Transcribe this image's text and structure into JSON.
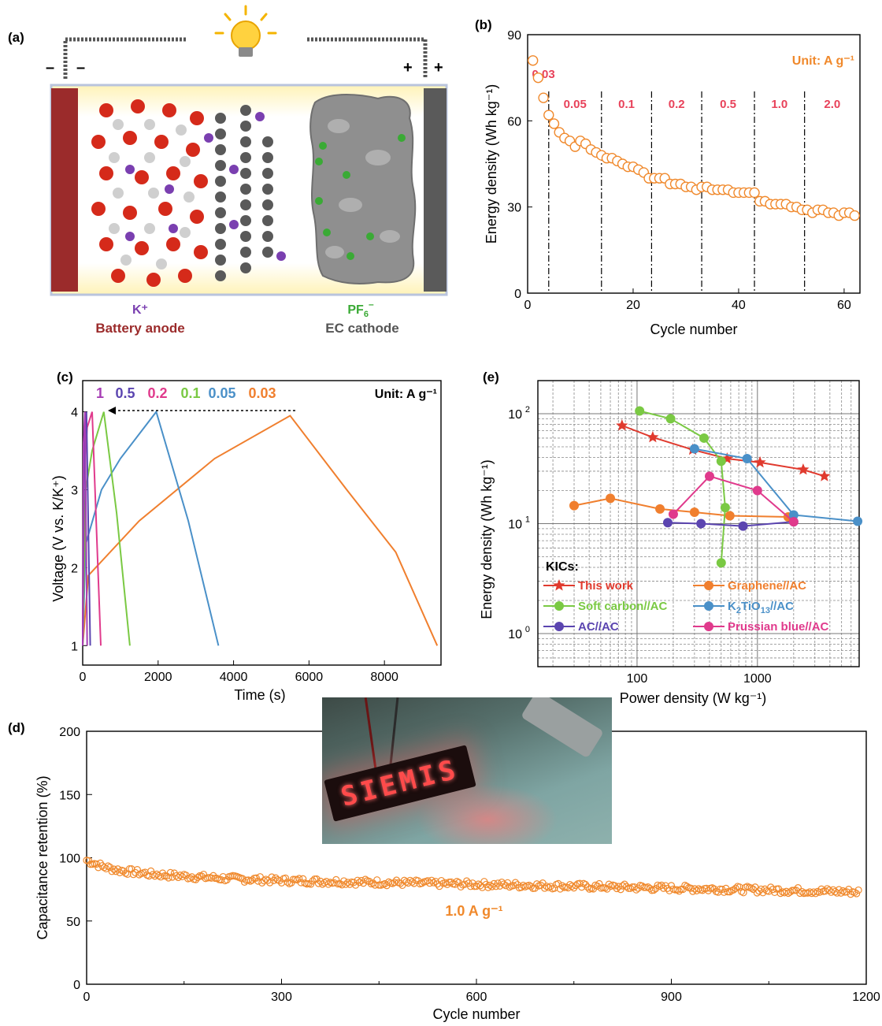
{
  "panel_labels": {
    "a": "(a)",
    "b": "(b)",
    "c": "(c)",
    "d": "(d)",
    "e": "(e)"
  },
  "schematic": {
    "minus": "–",
    "plus": "+",
    "k_ion": "K⁺",
    "anode_label": "Battery anode",
    "pf6_main": "PF",
    "pf6_sub": "6",
    "pf6_sup": "–",
    "cathode_label": "EC cathode",
    "colors": {
      "anode": "#9b2b2b",
      "cathode": "#555555",
      "k_ion": "#7a3fb0",
      "pf6": "#3aaa35"
    }
  },
  "chart_data": [
    {
      "id": "b",
      "type": "scatter",
      "xlabel": "Cycle number",
      "ylabel": "Energy density (Wh kg⁻¹)",
      "xlim": [
        0,
        63
      ],
      "ylim": [
        0,
        90
      ],
      "xticks": [
        0,
        20,
        40,
        60
      ],
      "yticks": [
        0,
        30,
        60,
        90
      ],
      "unit_note": "Unit: A g⁻¹",
      "rate_labels": [
        "0.03",
        "0.05",
        "0.1",
        "0.2",
        "0.5",
        "1.0",
        "2.0"
      ],
      "dividers": [
        4,
        14,
        23.5,
        33,
        43,
        52.5
      ],
      "marker_color": "#f0892c",
      "x": [
        1,
        2,
        3,
        4,
        5,
        6,
        7,
        8,
        9,
        10,
        11,
        12,
        13,
        14,
        15,
        16,
        17,
        18,
        19,
        20,
        21,
        22,
        23,
        24,
        25,
        26,
        27,
        28,
        29,
        30,
        31,
        32,
        33,
        34,
        35,
        36,
        37,
        38,
        39,
        40,
        41,
        42,
        43,
        44,
        45,
        46,
        47,
        48,
        49,
        50,
        51,
        52,
        53,
        54,
        55,
        56,
        57,
        58,
        59,
        60,
        61,
        62
      ],
      "y": [
        81,
        75,
        68,
        62,
        59,
        56,
        54,
        53,
        51,
        53,
        52,
        50,
        49,
        48,
        47,
        47,
        46,
        45,
        44,
        44,
        43,
        42,
        40,
        40,
        40,
        40,
        38,
        38,
        38,
        37,
        37,
        36,
        37,
        37,
        36,
        36,
        36,
        36,
        35,
        35,
        35,
        35,
        35,
        32,
        32,
        31,
        31,
        31,
        31,
        30,
        30,
        29,
        29,
        28,
        29,
        29,
        28,
        28,
        27,
        28,
        28,
        27
      ]
    },
    {
      "id": "c",
      "type": "line",
      "xlabel": "Time (s)",
      "ylabel": "Voltage (V vs. K/K⁺)",
      "xlim": [
        0,
        9500
      ],
      "ylim": [
        0.75,
        4.4
      ],
      "xticks": [
        0,
        2000,
        4000,
        6000,
        8000
      ],
      "yticks": [
        1,
        2,
        3,
        4
      ],
      "unit_note": "Unit: A g⁻¹",
      "series": [
        {
          "name": "1",
          "color": "#a63db4",
          "x": [
            0,
            20,
            60,
            120
          ],
          "y": [
            1.0,
            3.6,
            4.0,
            1.0
          ]
        },
        {
          "name": "0.5",
          "color": "#5b45b0",
          "x": [
            0,
            40,
            100,
            200
          ],
          "y": [
            1.0,
            3.5,
            4.0,
            1.0
          ]
        },
        {
          "name": "0.2",
          "color": "#e03a8c",
          "x": [
            0,
            40,
            120,
            250,
            480
          ],
          "y": [
            1.0,
            3.2,
            3.8,
            4.0,
            1.0
          ]
        },
        {
          "name": "0.1",
          "color": "#7ac943",
          "x": [
            0,
            80,
            250,
            560,
            900,
            1250
          ],
          "y": [
            1.0,
            3.0,
            3.5,
            4.0,
            2.7,
            1.0
          ]
        },
        {
          "name": "0.05",
          "color": "#4a90c8",
          "x": [
            0,
            80,
            500,
            1000,
            1950,
            2800,
            3600
          ],
          "y": [
            1.0,
            2.3,
            3.0,
            3.4,
            4.0,
            2.6,
            1.0
          ]
        },
        {
          "name": "0.03",
          "color": "#f07f2e",
          "x": [
            0,
            150,
            1500,
            3500,
            5500,
            7000,
            8300,
            9400
          ],
          "y": [
            1.0,
            1.9,
            2.6,
            3.4,
            3.95,
            3.0,
            2.2,
            1.0
          ]
        }
      ]
    },
    {
      "id": "e",
      "type": "line",
      "xscale": "log",
      "yscale": "log",
      "xlabel": "Power density (W kg⁻¹)",
      "ylabel": "Energy density (Wh kg⁻¹)",
      "xlim": [
        15,
        7000
      ],
      "ylim": [
        0.5,
        200
      ],
      "xtick_labels": [
        "100",
        "1000"
      ],
      "ytick_main": [
        "10",
        "10",
        "10"
      ],
      "ytick_exp": [
        "0",
        "1",
        "2"
      ],
      "legend_title": "KICs:",
      "series": [
        {
          "name": "This work",
          "marker": "star",
          "color": "#e03a2e",
          "x": [
            75,
            135,
            290,
            560,
            1050,
            2400,
            3600
          ],
          "y": [
            78,
            61,
            47,
            39,
            36,
            31,
            27
          ]
        },
        {
          "name": "Graphene//AC",
          "marker": "circle",
          "color": "#f07f2e",
          "x": [
            30,
            60,
            155,
            300,
            590,
            1800
          ],
          "y": [
            14.6,
            17,
            13.6,
            12.7,
            11.8,
            11.5
          ]
        },
        {
          "name": "Soft carbon//AC",
          "marker": "circle",
          "color": "#7ac943",
          "x": [
            105,
            190,
            360,
            500,
            540,
            500
          ],
          "y": [
            106,
            90,
            60,
            37,
            14,
            4.4
          ]
        },
        {
          "name": "K",
          "name_sub": "2",
          "name_mid": "TiO",
          "name_sub2": "13",
          "name_end": "//AC",
          "marker": "circle",
          "color": "#4a90c8",
          "x": [
            300,
            820,
            2000,
            6800
          ],
          "y": [
            48,
            39,
            12,
            10.5
          ]
        },
        {
          "name": "AC//AC",
          "marker": "circle",
          "color": "#5b45b0",
          "x": [
            180,
            340,
            760,
            2000
          ],
          "y": [
            10.2,
            10,
            9.5,
            10.4
          ]
        },
        {
          "name": "Prussian blue//AC",
          "marker": "circle",
          "color": "#e03a8c",
          "x": [
            200,
            400,
            1000,
            2000
          ],
          "y": [
            12.2,
            27,
            20,
            10.4
          ]
        }
      ]
    },
    {
      "id": "d",
      "type": "scatter",
      "xlabel": "Cycle number",
      "ylabel": "Capacitance retention (%)",
      "xlim": [
        0,
        1200
      ],
      "ylim": [
        0,
        200
      ],
      "xticks": [
        0,
        300,
        600,
        900,
        1200
      ],
      "yticks": [
        0,
        50,
        100,
        150,
        200
      ],
      "annotation": "1.0 A g⁻¹",
      "marker_color": "#f0892c",
      "x": [
        0,
        25,
        50,
        100,
        200,
        300,
        400,
        500,
        600,
        700,
        800,
        900,
        1000,
        1100,
        1190
      ],
      "y": [
        98,
        93,
        90,
        87,
        84,
        82,
        81,
        80,
        79,
        78,
        77,
        76,
        75,
        74,
        73
      ]
    }
  ],
  "photo": {
    "display_text": "SIEMIS"
  }
}
